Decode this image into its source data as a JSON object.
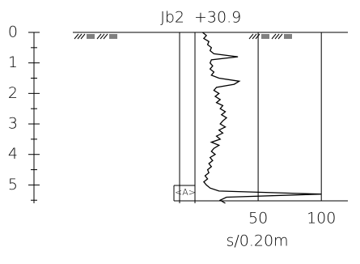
{
  "chart_data": {
    "type": "line",
    "title": "Jb2",
    "elevation": "+30.9",
    "xlabel": "s/0.20m",
    "annotation": "<A>",
    "x": [
      0,
      0.1,
      0.2,
      0.3,
      0.4,
      0.5,
      0.6,
      0.7,
      0.8,
      0.9,
      1.0,
      1.1,
      1.2,
      1.3,
      1.4,
      1.5,
      1.6,
      1.7,
      1.8,
      1.9,
      2.0,
      2.1,
      2.2,
      2.3,
      2.4,
      2.5,
      2.6,
      2.7,
      2.8,
      2.9,
      3.0,
      3.1,
      3.2,
      3.3,
      3.4,
      3.5,
      3.6,
      3.7,
      3.8,
      3.9,
      4.0,
      4.1,
      4.2,
      4.3,
      4.4,
      4.5,
      4.6,
      4.7,
      4.8,
      4.9,
      5.0,
      5.1,
      5.2,
      5.3,
      5.4,
      5.5,
      5.6
    ],
    "values": [
      6,
      9,
      7,
      11,
      10,
      13,
      12,
      15,
      34,
      13,
      12,
      14,
      12,
      15,
      13,
      19,
      35,
      31,
      17,
      15,
      19,
      16,
      20,
      17,
      22,
      20,
      24,
      21,
      25,
      22,
      20,
      24,
      19,
      22,
      17,
      20,
      13,
      19,
      15,
      13,
      16,
      12,
      14,
      11,
      13,
      10,
      11,
      8,
      10,
      7,
      9,
      12,
      19,
      100,
      25,
      20,
      24
    ],
    "color": "#000000",
    "ylim": [
      0,
      5.6
    ],
    "yticks": [
      0,
      1,
      2,
      3,
      4,
      5
    ],
    "minor_yticks": [
      0.5,
      1.5,
      2.5,
      3.5,
      4.5,
      5.5
    ],
    "xlim": [
      0,
      121
    ],
    "xticks": [
      50,
      100
    ],
    "grid": true
  }
}
